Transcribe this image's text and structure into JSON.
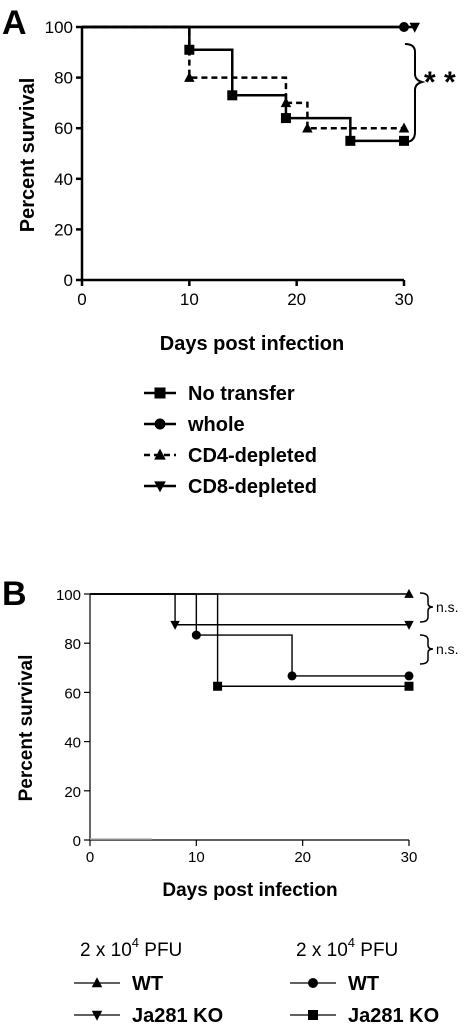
{
  "chart_data": [
    {
      "type": "line",
      "step": true,
      "panel_label": "A",
      "xlabel": "Days post infection",
      "ylabel": "Percent survival",
      "xlim": [
        0,
        30
      ],
      "ylim": [
        0,
        100
      ],
      "xticks": [
        0,
        10,
        20,
        30
      ],
      "yticks": [
        0,
        20,
        40,
        60,
        80,
        100
      ],
      "legend_position": "bottom",
      "series": [
        {
          "name": "No transfer",
          "marker": "square",
          "dash": false,
          "points": [
            [
              0,
              100
            ],
            [
              10,
              91
            ],
            [
              14,
              73
            ],
            [
              19,
              64
            ],
            [
              25,
              55
            ],
            [
              30,
              55
            ]
          ]
        },
        {
          "name": "whole",
          "marker": "circle",
          "dash": false,
          "points": [
            [
              0,
              100
            ],
            [
              30,
              100
            ]
          ]
        },
        {
          "name": "CD4-depleted",
          "marker": "triangle-up",
          "dash": true,
          "points": [
            [
              0,
              100
            ],
            [
              10,
              80
            ],
            [
              19,
              70
            ],
            [
              21,
              60
            ],
            [
              30,
              60
            ]
          ]
        },
        {
          "name": "CD8-depleted",
          "marker": "triangle-down",
          "dash": false,
          "points": [
            [
              0,
              100
            ],
            [
              31,
              100
            ]
          ]
        }
      ],
      "annotations": [
        {
          "text": "* *",
          "position": "right"
        }
      ]
    },
    {
      "type": "line",
      "step": true,
      "panel_label": "B",
      "xlabel": "Days post infection",
      "ylabel": "Percent survival",
      "xlim": [
        0,
        30
      ],
      "ylim": [
        0,
        100
      ],
      "xticks": [
        0,
        10,
        20,
        30
      ],
      "yticks": [
        0,
        20,
        40,
        60,
        80,
        100
      ],
      "legend_position": "bottom",
      "legend_groups": [
        {
          "title_base": "2 x 10",
          "title_exp": "4",
          "title_unit": " PFU",
          "entries": [
            {
              "name": "WT",
              "marker": "triangle-up"
            },
            {
              "name": "Ja281 KO",
              "marker": "triangle-down"
            }
          ]
        },
        {
          "title_base": "2 x 10",
          "title_exp": "4",
          "title_unit": " PFU",
          "entries": [
            {
              "name": "WT",
              "marker": "circle"
            },
            {
              "name": "Ja281 KO",
              "marker": "square"
            }
          ]
        }
      ],
      "series": [
        {
          "name": "WT",
          "marker": "triangle-up",
          "points": [
            [
              0,
              100
            ],
            [
              30,
              100
            ]
          ]
        },
        {
          "name": "Ja281 KO",
          "marker": "triangle-down",
          "points": [
            [
              0,
              100
            ],
            [
              8,
              87.5
            ],
            [
              30,
              87.5
            ]
          ]
        },
        {
          "name": "WT",
          "marker": "circle",
          "points": [
            [
              0,
              100
            ],
            [
              10,
              83.3
            ],
            [
              19,
              66.7
            ],
            [
              30,
              66.7
            ]
          ]
        },
        {
          "name": "Ja281 KO",
          "marker": "square",
          "points": [
            [
              0,
              100
            ],
            [
              12,
              62.5
            ],
            [
              30,
              62.5
            ]
          ]
        }
      ],
      "annotations": [
        {
          "text": "n.s.",
          "position": "right-top"
        },
        {
          "text": "n.s.",
          "position": "right-bottom"
        }
      ]
    }
  ]
}
